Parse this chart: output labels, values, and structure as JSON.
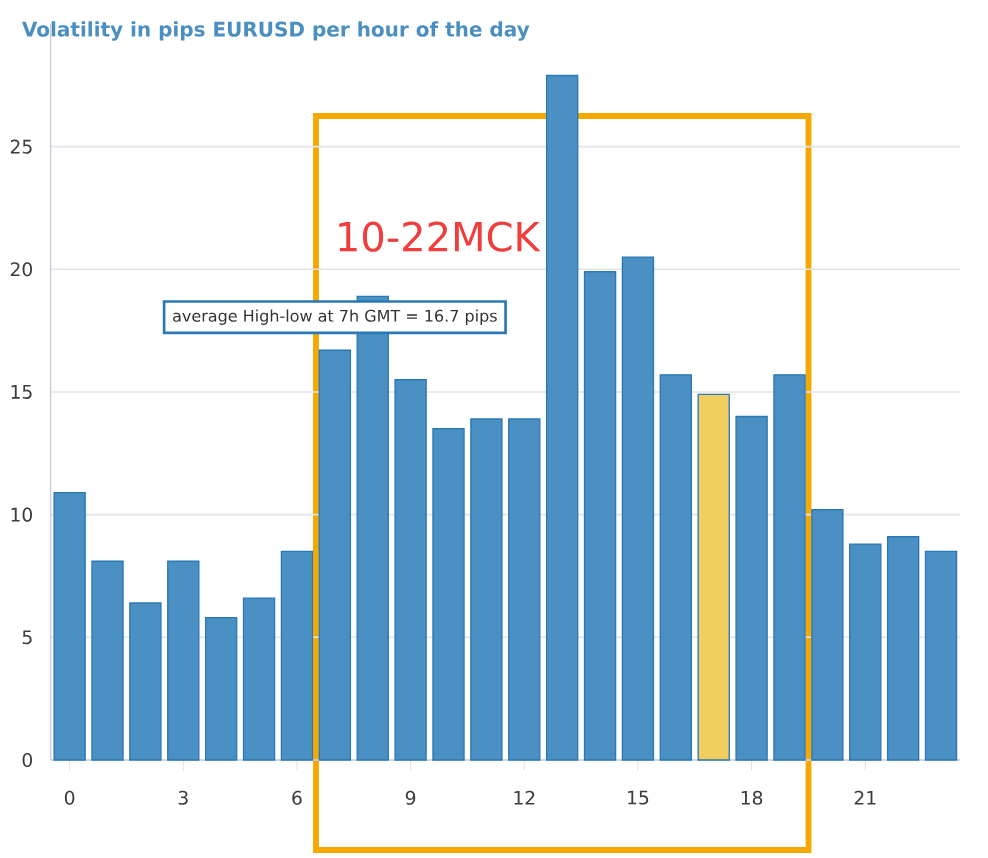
{
  "chart_data": {
    "type": "bar",
    "title": "Volatility in pips EURUSD per hour of the day",
    "x": [
      0,
      1,
      2,
      3,
      4,
      5,
      6,
      7,
      8,
      9,
      10,
      11,
      12,
      13,
      14,
      15,
      16,
      17,
      18,
      19,
      20,
      21,
      22,
      23
    ],
    "values": [
      10.9,
      8.1,
      6.4,
      8.1,
      5.8,
      6.6,
      8.5,
      16.7,
      18.9,
      15.5,
      13.5,
      13.9,
      13.9,
      27.9,
      19.9,
      20.5,
      15.7,
      14.9,
      14.0,
      15.7,
      10.2,
      8.8,
      9.1,
      8.5
    ],
    "colors": [
      "#4a90c2",
      "#4a90c2",
      "#4a90c2",
      "#4a90c2",
      "#4a90c2",
      "#4a90c2",
      "#4a90c2",
      "#4a90c2",
      "#4a90c2",
      "#4a90c2",
      "#4a90c2",
      "#4a90c2",
      "#4a90c2",
      "#4a90c2",
      "#4a90c2",
      "#4a90c2",
      "#4a90c2",
      "#f2ce5e",
      "#4a90c2",
      "#4a90c2",
      "#4a90c2",
      "#4a90c2",
      "#4a90c2",
      "#4a90c2"
    ],
    "xlim": [
      -0.5,
      23.5
    ],
    "xticks": [
      0,
      3,
      6,
      9,
      12,
      15,
      18,
      21
    ],
    "ylim": [
      0,
      30
    ],
    "yticks": [
      0,
      5,
      10,
      15,
      20,
      25
    ],
    "grid": "y",
    "annotations": [
      {
        "text": "average High-low at 7h GMT = 16.7 pips",
        "x": 7,
        "y": 16.7
      },
      "10-22MCK"
    ]
  }
}
